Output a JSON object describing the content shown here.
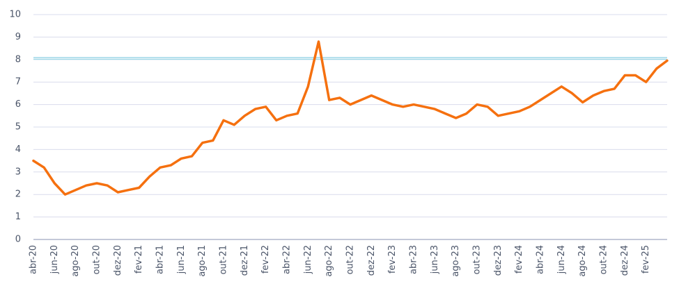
{
  "chart_data": {
    "type": "line",
    "categories": [
      "abr-20",
      null,
      "jun-20",
      null,
      "ago-20",
      null,
      "out-20",
      null,
      "dez-20",
      null,
      "fev-21",
      null,
      "abr-21",
      null,
      "jun-21",
      null,
      "ago-21",
      null,
      "out-21",
      null,
      "dez-21",
      null,
      "fev-22",
      null,
      "abr-22",
      null,
      "jun-22",
      null,
      "ago-22",
      null,
      "out-22",
      null,
      "dez-22",
      null,
      "fev-23",
      null,
      "abr-23",
      null,
      "jun-23",
      null,
      "ago-23",
      null,
      "out-23",
      null,
      "dez-23",
      null,
      "fev-24",
      null,
      "abr-24",
      null,
      "jun-24",
      null,
      "ago-24",
      null,
      "out-24",
      null,
      "dez-24",
      null,
      "fev-25",
      null,
      null
    ],
    "values": [
      3.5,
      3.2,
      2.5,
      2.0,
      2.2,
      2.4,
      2.5,
      2.4,
      2.1,
      2.2,
      2.3,
      2.8,
      3.2,
      3.3,
      3.6,
      3.7,
      4.3,
      4.4,
      5.3,
      5.1,
      5.5,
      5.8,
      5.9,
      5.3,
      5.5,
      5.6,
      6.8,
      8.8,
      6.2,
      6.3,
      6.0,
      6.2,
      6.4,
      6.2,
      6.0,
      5.9,
      6.0,
      5.9,
      5.8,
      5.6,
      5.4,
      5.6,
      6.0,
      5.9,
      5.5,
      5.6,
      5.7,
      5.9,
      6.2,
      6.5,
      6.8,
      6.5,
      6.1,
      6.4,
      6.6,
      6.7,
      7.3,
      7.3,
      7.0,
      7.6,
      7.95
    ],
    "color": "#f5700f",
    "reference_line": 8.05,
    "reference_color": "#9fd8e8",
    "ylim": [
      0,
      10
    ],
    "yticks": [
      0,
      1,
      2,
      3,
      4,
      5,
      6,
      7,
      8,
      9,
      10
    ],
    "grid": true
  }
}
